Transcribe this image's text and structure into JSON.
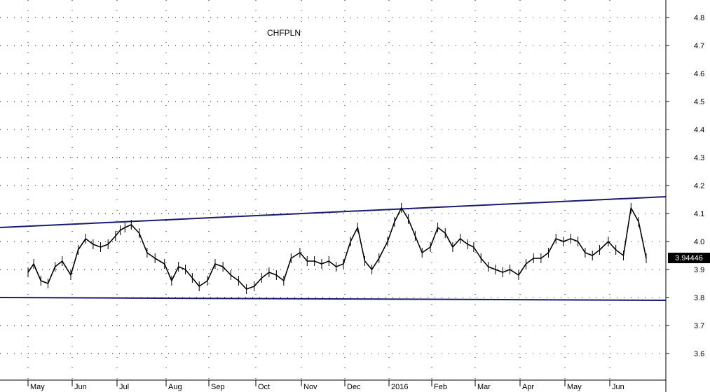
{
  "chart_data": {
    "type": "line",
    "title": "CHFPLN",
    "xlabel": "",
    "ylabel": "",
    "grid": true,
    "ylim": [
      3.55,
      4.85
    ],
    "y_ticks": [
      "3.6",
      "3.7",
      "3.8",
      "3.9",
      "4.0",
      "4.1",
      "4.2",
      "4.3",
      "4.4",
      "4.5",
      "4.6",
      "4.7",
      "4.8"
    ],
    "x_ticks": [
      "May",
      "Jun",
      "Jul",
      "Aug",
      "Sep",
      "Oct",
      "Nov",
      "Dec",
      "2016",
      "Feb",
      "Mar",
      "Apr",
      "May",
      "Jun"
    ],
    "last_price": "3.94446",
    "colors": {
      "price": "#000000",
      "trendline": "#1a1a6e",
      "badge": "#000000",
      "grid": "#000000"
    },
    "series": [
      {
        "x": [
          "May 1",
          "May 5",
          "May 10",
          "May 15",
          "May 20",
          "May 25",
          "May 31",
          "Jun 5",
          "Jun 10",
          "Jun 15",
          "Jun 20",
          "Jun 25",
          "Jun 30",
          "Jul 3",
          "Jul 6",
          "Jul 10",
          "Jul 15",
          "Jul 20",
          "Jul 25",
          "Jul 31",
          "Aug 5",
          "Aug 10",
          "Aug 15",
          "Aug 20",
          "Aug 25",
          "Aug 31",
          "Sep 5",
          "Sep 10",
          "Sep 15",
          "Sep 20",
          "Sep 25",
          "Sep 30",
          "Oct 5",
          "Oct 10",
          "Oct 15",
          "Oct 20",
          "Oct 25",
          "Oct 31",
          "Nov 5",
          "Nov 10",
          "Nov 15",
          "Nov 20",
          "Nov 25",
          "Nov 30",
          "Dec 5",
          "Dec 10",
          "Dec 15",
          "Dec 20",
          "Dec 25",
          "Dec 31",
          "Jan 5",
          "Jan 10",
          "Jan 15",
          "Jan 20",
          "Jan 25",
          "Jan 31",
          "Feb 5",
          "Feb 10",
          "Feb 15",
          "Feb 20",
          "Feb 25",
          "Feb 29",
          "Mar 5",
          "Mar 10",
          "Mar 15",
          "Mar 20",
          "Mar 25",
          "Mar 31",
          "Apr 5",
          "Apr 10",
          "Apr 15",
          "Apr 20",
          "Apr 25",
          "Apr 30",
          "May 5",
          "May 10",
          "May 15",
          "May 20",
          "May 25",
          "May 31",
          "Jun 5",
          "Jun 10",
          "Jun 15",
          "Jun 20",
          "Jun 25"
        ],
        "values": [
          3.89,
          3.92,
          3.86,
          3.85,
          3.91,
          3.93,
          3.88,
          3.97,
          4.01,
          3.99,
          3.98,
          3.99,
          4.02,
          4.04,
          4.05,
          4.06,
          4.03,
          3.96,
          3.94,
          3.92,
          3.86,
          3.91,
          3.9,
          3.87,
          3.84,
          3.86,
          3.92,
          3.91,
          3.88,
          3.86,
          3.83,
          3.84,
          3.87,
          3.89,
          3.88,
          3.86,
          3.94,
          3.96,
          3.93,
          3.93,
          3.92,
          3.93,
          3.91,
          3.92,
          4.0,
          4.05,
          3.93,
          3.9,
          3.94,
          4.0,
          4.07,
          4.12,
          4.08,
          4.02,
          3.96,
          3.98,
          4.05,
          4.03,
          3.98,
          4.01,
          3.99,
          3.98,
          3.94,
          3.91,
          3.9,
          3.89,
          3.9,
          3.88,
          3.92,
          3.94,
          3.94,
          3.96,
          4.01,
          4.0,
          4.01,
          4.0,
          3.96,
          3.95,
          3.97,
          4.0,
          3.97,
          3.95,
          4.12,
          4.07,
          3.94
        ]
      }
    ],
    "trendlines": [
      {
        "name": "",
        "from": [
          "May 1",
          4.05
        ],
        "to": [
          "Jun 25",
          4.16
        ]
      },
      {
        "name": "",
        "from": [
          "May 1",
          3.8
        ],
        "to": [
          "Jun 25",
          3.79
        ]
      }
    ]
  }
}
